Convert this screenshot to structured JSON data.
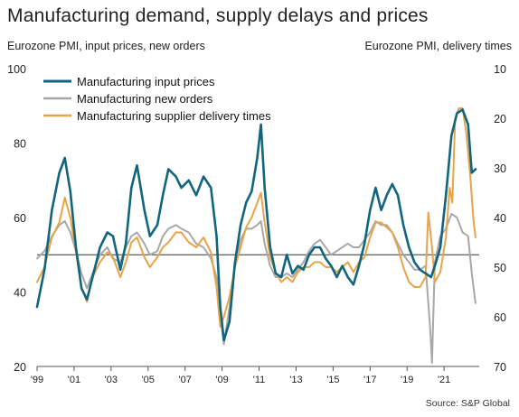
{
  "chart_data": {
    "type": "line",
    "title": "Manufacturing demand, supply delays and prices",
    "ylabel_left": "Eurozone PMI, input prices, new orders",
    "ylabel_right": "Eurozone PMI, delivery times",
    "source": "Source: S&P Global",
    "left_axis": {
      "ticks": [
        20,
        40,
        60,
        80,
        100
      ],
      "range": [
        20,
        100
      ]
    },
    "right_axis": {
      "ticks": [
        10,
        20,
        30,
        40,
        50,
        60,
        70
      ],
      "range": [
        10,
        70
      ],
      "inverted": true
    },
    "x_tick_labels": [
      "'99",
      "'01",
      "'03",
      "'05",
      "'07",
      "'09",
      "'11",
      "'13",
      "'15",
      "'17",
      "'19",
      "'21"
    ],
    "x_tick_years": [
      1999,
      2001,
      2003,
      2005,
      2007,
      2009,
      2011,
      2013,
      2015,
      2017,
      2019,
      2021
    ],
    "x_range": [
      1999,
      2022.9
    ],
    "reference_line_value": 50,
    "legend_position": "top-left",
    "series": [
      {
        "name": "Manufacturing input prices",
        "color": "#12657f",
        "axis": "left",
        "x": [
          1999.0,
          1999.4,
          1999.8,
          2000.2,
          2000.5,
          2000.8,
          2001.1,
          2001.4,
          2001.7,
          2002.0,
          2002.4,
          2002.8,
          2003.1,
          2003.5,
          2003.8,
          2004.1,
          2004.4,
          2004.8,
          2005.1,
          2005.5,
          2005.8,
          2006.1,
          2006.5,
          2006.8,
          2007.2,
          2007.6,
          2008.0,
          2008.4,
          2008.7,
          2008.9,
          2009.1,
          2009.4,
          2009.7,
          2010.0,
          2010.3,
          2010.6,
          2010.9,
          2011.1,
          2011.3,
          2011.6,
          2011.9,
          2012.2,
          2012.5,
          2012.8,
          2013.1,
          2013.4,
          2013.7,
          2014.0,
          2014.3,
          2014.6,
          2014.9,
          2015.2,
          2015.5,
          2015.8,
          2016.1,
          2016.4,
          2016.7,
          2017.0,
          2017.3,
          2017.6,
          2017.9,
          2018.2,
          2018.5,
          2018.8,
          2019.1,
          2019.4,
          2019.7,
          2020.0,
          2020.3,
          2020.5,
          2020.8,
          2021.1,
          2021.4,
          2021.7,
          2022.0,
          2022.3,
          2022.5,
          2022.7
        ],
        "values": [
          36,
          46,
          62,
          72,
          76,
          67,
          52,
          41,
          38,
          44,
          52,
          56,
          55,
          46,
          53,
          68,
          74,
          62,
          55,
          58,
          66,
          73,
          71,
          68,
          70,
          66,
          71,
          68,
          55,
          36,
          27,
          32,
          48,
          58,
          64,
          67,
          76,
          85,
          68,
          52,
          45,
          44,
          50,
          45,
          47,
          46,
          50,
          52,
          52,
          49,
          47,
          44,
          47,
          44,
          42,
          47,
          53,
          62,
          68,
          62,
          66,
          69,
          66,
          58,
          52,
          48,
          46,
          45,
          44,
          47,
          52,
          66,
          82,
          88,
          89,
          85,
          72,
          73
        ]
      },
      {
        "name": "Manufacturing new orders",
        "color": "#a8a8a8",
        "axis": "left",
        "x": [
          1999.0,
          1999.4,
          1999.8,
          2000.2,
          2000.5,
          2000.8,
          2001.1,
          2001.4,
          2001.7,
          2002.0,
          2002.4,
          2002.8,
          2003.1,
          2003.5,
          2003.8,
          2004.1,
          2004.4,
          2004.8,
          2005.1,
          2005.5,
          2005.8,
          2006.1,
          2006.5,
          2006.8,
          2007.2,
          2007.6,
          2008.0,
          2008.4,
          2008.7,
          2008.9,
          2009.1,
          2009.4,
          2009.7,
          2010.0,
          2010.3,
          2010.6,
          2010.9,
          2011.1,
          2011.3,
          2011.6,
          2011.9,
          2012.2,
          2012.5,
          2012.8,
          2013.1,
          2013.4,
          2013.7,
          2014.0,
          2014.3,
          2014.6,
          2014.9,
          2015.2,
          2015.5,
          2015.8,
          2016.1,
          2016.4,
          2016.7,
          2017.0,
          2017.3,
          2017.6,
          2017.9,
          2018.2,
          2018.5,
          2018.8,
          2019.1,
          2019.4,
          2019.7,
          2020.0,
          2020.25,
          2020.35,
          2020.5,
          2020.8,
          2021.1,
          2021.4,
          2021.7,
          2022.0,
          2022.3,
          2022.5,
          2022.7
        ],
        "values": [
          49,
          51,
          55,
          58,
          59,
          56,
          51,
          45,
          41,
          45,
          50,
          52,
          49,
          48,
          52,
          55,
          56,
          53,
          50,
          51,
          55,
          57,
          58,
          57,
          56,
          53,
          52,
          49,
          44,
          34,
          26,
          36,
          48,
          54,
          57,
          57,
          58,
          59,
          53,
          47,
          44,
          44,
          45,
          44,
          46,
          48,
          51,
          53,
          54,
          52,
          50,
          51,
          52,
          53,
          52,
          52,
          54,
          56,
          59,
          58,
          58,
          56,
          53,
          50,
          48,
          46,
          46,
          47,
          30,
          21,
          48,
          55,
          57,
          61,
          60,
          56,
          55,
          45,
          37
        ]
      },
      {
        "name": "Manufacturing supplier delivery times",
        "color": "#e8a44a",
        "axis": "right",
        "x": [
          1999.0,
          1999.4,
          1999.8,
          2000.2,
          2000.5,
          2000.8,
          2001.1,
          2001.4,
          2001.7,
          2002.0,
          2002.4,
          2002.8,
          2003.1,
          2003.5,
          2003.8,
          2004.1,
          2004.4,
          2004.8,
          2005.1,
          2005.5,
          2005.8,
          2006.1,
          2006.5,
          2006.8,
          2007.2,
          2007.6,
          2008.0,
          2008.4,
          2008.7,
          2008.9,
          2009.1,
          2009.4,
          2009.7,
          2010.0,
          2010.3,
          2010.6,
          2010.9,
          2011.1,
          2011.3,
          2011.6,
          2011.9,
          2012.2,
          2012.5,
          2012.8,
          2013.1,
          2013.4,
          2013.7,
          2014.0,
          2014.3,
          2014.6,
          2014.9,
          2015.2,
          2015.5,
          2015.8,
          2016.1,
          2016.4,
          2016.7,
          2017.0,
          2017.3,
          2017.6,
          2017.9,
          2018.2,
          2018.5,
          2018.8,
          2019.1,
          2019.4,
          2019.7,
          2020.0,
          2020.15,
          2020.35,
          2020.5,
          2020.8,
          2021.1,
          2021.3,
          2021.45,
          2021.6,
          2021.8,
          2022.0,
          2022.2,
          2022.4,
          2022.6,
          2022.7
        ],
        "values": [
          53,
          50,
          44,
          41,
          36,
          40,
          47,
          54,
          57,
          52,
          49,
          47,
          48,
          52,
          49,
          45,
          44,
          48,
          50,
          48,
          46,
          45,
          43,
          43,
          45,
          46,
          44,
          47,
          54,
          62,
          60,
          56,
          50,
          46,
          42,
          40,
          37,
          35,
          41,
          48,
          51,
          53,
          52,
          53,
          51,
          50,
          50,
          49,
          49,
          50,
          50,
          51,
          50,
          49,
          51,
          49,
          48,
          44,
          41,
          41,
          42,
          43,
          46,
          50,
          53,
          54,
          54,
          52,
          39,
          46,
          53,
          51,
          44,
          34,
          37,
          20,
          18,
          18,
          23,
          31,
          41,
          44
        ]
      }
    ]
  }
}
